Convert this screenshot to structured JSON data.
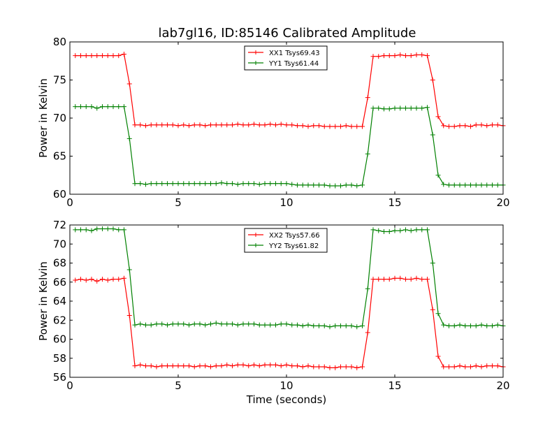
{
  "title": "lab7gl16, ID:85146 Calibrated Amplitude",
  "chart_data": [
    {
      "type": "line",
      "xlabel": "",
      "ylabel": "Power in Kelvin",
      "xlim": [
        0,
        20
      ],
      "ylim": [
        60,
        80
      ],
      "xticks": [
        0,
        5,
        10,
        15,
        20
      ],
      "yticks": [
        60,
        65,
        70,
        75,
        80
      ],
      "grid": false,
      "legend_position": "top-center",
      "x": [
        0.25,
        0.5,
        0.75,
        1.0,
        1.25,
        1.5,
        1.75,
        2.0,
        2.25,
        2.5,
        2.75,
        3.0,
        3.25,
        3.5,
        3.75,
        4.0,
        4.25,
        4.5,
        4.75,
        5.0,
        5.25,
        5.5,
        5.75,
        6.0,
        6.25,
        6.5,
        6.75,
        7.0,
        7.25,
        7.5,
        7.75,
        8.0,
        8.25,
        8.5,
        8.75,
        9.0,
        9.25,
        9.5,
        9.75,
        10.0,
        10.25,
        10.5,
        10.75,
        11.0,
        11.25,
        11.5,
        11.75,
        12.0,
        12.25,
        12.5,
        12.75,
        13.0,
        13.25,
        13.5,
        13.75,
        14.0,
        14.25,
        14.5,
        14.75,
        15.0,
        15.25,
        15.5,
        15.75,
        16.0,
        16.25,
        16.5,
        16.75,
        17.0,
        17.25,
        17.5,
        17.75,
        18.0,
        18.25,
        18.5,
        18.75,
        19.0,
        19.25,
        19.5,
        19.75,
        20.0
      ],
      "series": [
        {
          "name": "XX1 Tsys69.43",
          "color": "#ff0000",
          "values": [
            78.2,
            78.2,
            78.2,
            78.2,
            78.2,
            78.2,
            78.2,
            78.2,
            78.2,
            78.4,
            74.5,
            69.1,
            69.1,
            69.0,
            69.1,
            69.1,
            69.1,
            69.1,
            69.1,
            69.0,
            69.1,
            69.0,
            69.1,
            69.1,
            69.0,
            69.1,
            69.1,
            69.1,
            69.1,
            69.1,
            69.2,
            69.1,
            69.1,
            69.2,
            69.1,
            69.1,
            69.2,
            69.1,
            69.2,
            69.1,
            69.1,
            69.0,
            69.0,
            68.9,
            69.0,
            69.0,
            68.9,
            68.9,
            68.9,
            68.9,
            69.0,
            68.9,
            68.9,
            68.9,
            72.7,
            78.1,
            78.1,
            78.2,
            78.2,
            78.2,
            78.3,
            78.2,
            78.2,
            78.3,
            78.3,
            78.2,
            75.0,
            70.2,
            69.0,
            68.9,
            68.9,
            69.0,
            69.0,
            68.9,
            69.1,
            69.1,
            69.0,
            69.1,
            69.1,
            69.0
          ]
        },
        {
          "name": "YY1 Tsys61.44",
          "color": "#008000",
          "values": [
            71.5,
            71.5,
            71.5,
            71.5,
            71.3,
            71.5,
            71.5,
            71.5,
            71.5,
            71.5,
            67.3,
            61.4,
            61.4,
            61.3,
            61.4,
            61.4,
            61.4,
            61.4,
            61.4,
            61.4,
            61.4,
            61.4,
            61.4,
            61.4,
            61.4,
            61.4,
            61.4,
            61.5,
            61.4,
            61.4,
            61.3,
            61.4,
            61.4,
            61.4,
            61.3,
            61.4,
            61.4,
            61.4,
            61.4,
            61.4,
            61.3,
            61.2,
            61.2,
            61.2,
            61.2,
            61.2,
            61.2,
            61.1,
            61.1,
            61.1,
            61.2,
            61.2,
            61.1,
            61.2,
            65.3,
            71.3,
            71.3,
            71.2,
            71.2,
            71.3,
            71.3,
            71.3,
            71.3,
            71.3,
            71.3,
            71.4,
            67.8,
            62.5,
            61.3,
            61.2,
            61.2,
            61.2,
            61.2,
            61.2,
            61.2,
            61.2,
            61.2,
            61.2,
            61.2,
            61.2
          ]
        }
      ]
    },
    {
      "type": "line",
      "xlabel": "Time (seconds)",
      "ylabel": "Power in Kelvin",
      "xlim": [
        0,
        20
      ],
      "ylim": [
        56,
        72
      ],
      "xticks": [
        0,
        5,
        10,
        15,
        20
      ],
      "yticks": [
        56,
        58,
        60,
        62,
        64,
        66,
        68,
        70,
        72
      ],
      "grid": false,
      "legend_position": "top-center",
      "x": [
        0.25,
        0.5,
        0.75,
        1.0,
        1.25,
        1.5,
        1.75,
        2.0,
        2.25,
        2.5,
        2.75,
        3.0,
        3.25,
        3.5,
        3.75,
        4.0,
        4.25,
        4.5,
        4.75,
        5.0,
        5.25,
        5.5,
        5.75,
        6.0,
        6.25,
        6.5,
        6.75,
        7.0,
        7.25,
        7.5,
        7.75,
        8.0,
        8.25,
        8.5,
        8.75,
        9.0,
        9.25,
        9.5,
        9.75,
        10.0,
        10.25,
        10.5,
        10.75,
        11.0,
        11.25,
        11.5,
        11.75,
        12.0,
        12.25,
        12.5,
        12.75,
        13.0,
        13.25,
        13.5,
        13.75,
        14.0,
        14.25,
        14.5,
        14.75,
        15.0,
        15.25,
        15.5,
        15.75,
        16.0,
        16.25,
        16.5,
        16.75,
        17.0,
        17.25,
        17.5,
        17.75,
        18.0,
        18.25,
        18.5,
        18.75,
        19.0,
        19.25,
        19.5,
        19.75,
        20.0
      ],
      "series": [
        {
          "name": "XX2 Tsys57.66",
          "color": "#ff0000",
          "values": [
            66.2,
            66.3,
            66.2,
            66.3,
            66.1,
            66.3,
            66.2,
            66.3,
            66.3,
            66.4,
            62.5,
            57.2,
            57.3,
            57.2,
            57.2,
            57.1,
            57.2,
            57.2,
            57.2,
            57.2,
            57.2,
            57.2,
            57.1,
            57.2,
            57.2,
            57.1,
            57.2,
            57.2,
            57.3,
            57.2,
            57.3,
            57.3,
            57.2,
            57.3,
            57.2,
            57.3,
            57.3,
            57.3,
            57.2,
            57.3,
            57.2,
            57.2,
            57.1,
            57.2,
            57.1,
            57.1,
            57.1,
            57.0,
            57.0,
            57.1,
            57.1,
            57.1,
            57.0,
            57.1,
            60.7,
            66.3,
            66.3,
            66.3,
            66.3,
            66.4,
            66.4,
            66.3,
            66.3,
            66.4,
            66.3,
            66.3,
            63.1,
            58.2,
            57.1,
            57.1,
            57.1,
            57.2,
            57.1,
            57.1,
            57.2,
            57.1,
            57.2,
            57.2,
            57.2,
            57.1
          ]
        },
        {
          "name": "YY2 Tsys61.82",
          "color": "#008000",
          "values": [
            71.5,
            71.5,
            71.5,
            71.4,
            71.6,
            71.6,
            71.6,
            71.6,
            71.5,
            71.5,
            67.3,
            61.5,
            61.6,
            61.5,
            61.5,
            61.6,
            61.6,
            61.5,
            61.6,
            61.6,
            61.6,
            61.5,
            61.6,
            61.6,
            61.5,
            61.6,
            61.7,
            61.6,
            61.6,
            61.6,
            61.5,
            61.6,
            61.6,
            61.6,
            61.5,
            61.5,
            61.5,
            61.5,
            61.6,
            61.6,
            61.5,
            61.5,
            61.4,
            61.5,
            61.4,
            61.4,
            61.4,
            61.3,
            61.4,
            61.4,
            61.4,
            61.4,
            61.3,
            61.4,
            65.3,
            71.5,
            71.4,
            71.3,
            71.3,
            71.4,
            71.4,
            71.5,
            71.4,
            71.5,
            71.5,
            71.5,
            68.0,
            62.7,
            61.5,
            61.4,
            61.4,
            61.5,
            61.4,
            61.4,
            61.4,
            61.5,
            61.4,
            61.4,
            61.5,
            61.4
          ]
        }
      ]
    }
  ]
}
